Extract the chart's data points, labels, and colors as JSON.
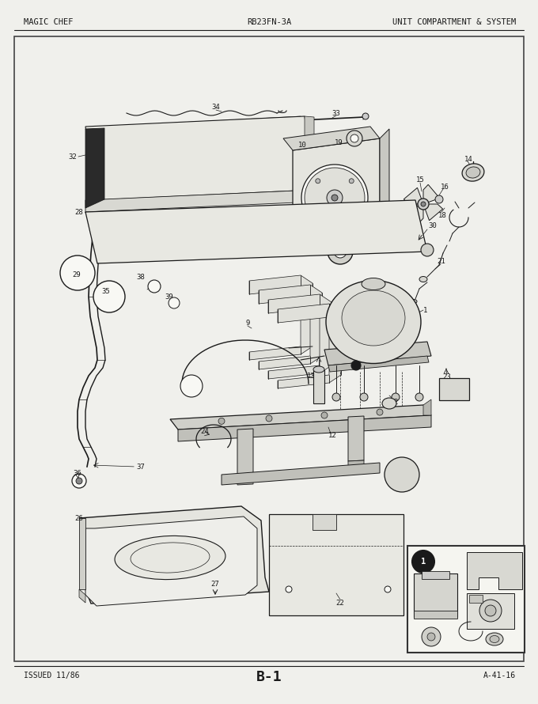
{
  "header_left": "MAGIC CHEF",
  "header_center": "RB23FN-3A",
  "header_right": "UNIT COMPARTMENT & SYSTEM",
  "footer_left": "ISSUED 11/86",
  "footer_center": "B-1",
  "footer_right": "A-41-16",
  "bg_color": "#f0f0ec",
  "paper_color": "#f8f8f4",
  "border_color": "#444444",
  "line_color": "#1a1a1a",
  "text_color": "#1a1a1a"
}
